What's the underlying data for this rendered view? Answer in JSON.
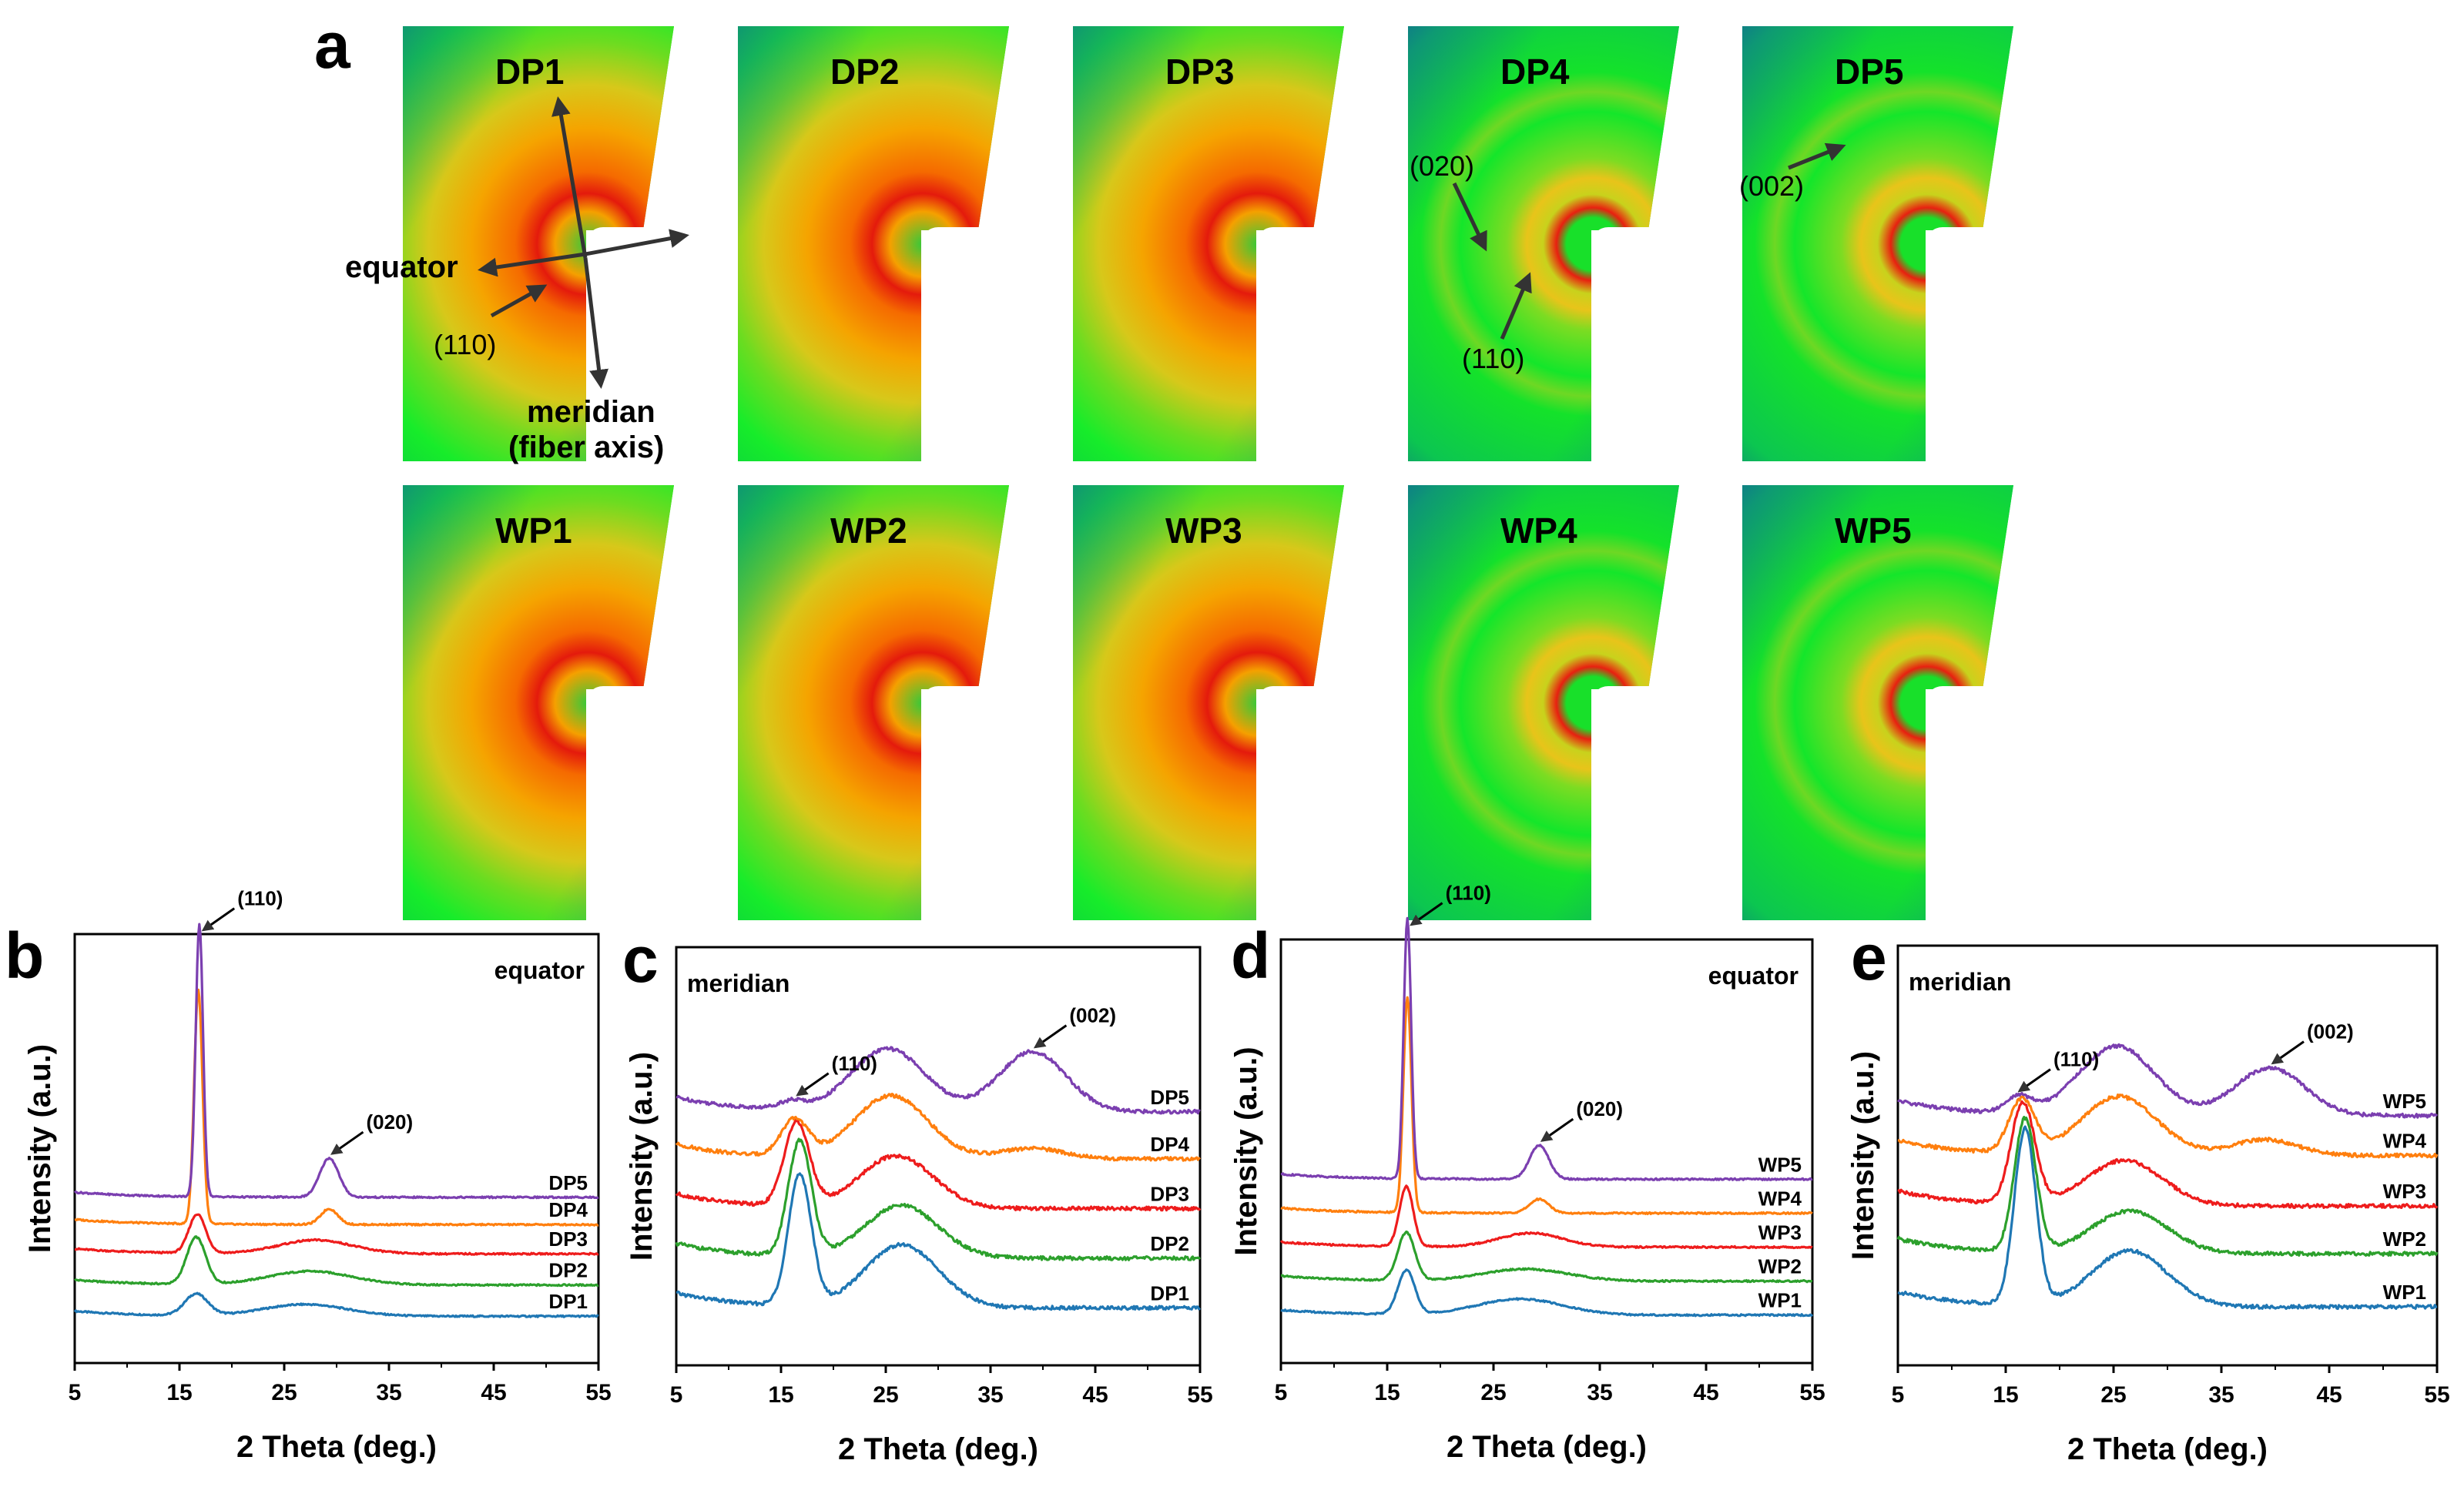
{
  "figure": {
    "panel_a_letter": "a",
    "dp_row_labels": [
      "DP1",
      "DP2",
      "DP3",
      "DP4",
      "DP5"
    ],
    "wp_row_labels": [
      "WP1",
      "WP2",
      "WP3",
      "WP4",
      "WP5"
    ],
    "annotations": {
      "equator": "equator",
      "meridian": "meridian",
      "fiber_axis": "(fiber axis)",
      "dp1_110": "(110)",
      "dp4_020": "(020)",
      "dp4_110": "(110)",
      "dp5_002": "(002)"
    },
    "colors": {
      "purple": "#7b3fb0",
      "orange": "#ff7f0e",
      "red": "#ee1c1c",
      "green": "#2ca02c",
      "blue": "#1f77b4"
    }
  },
  "chart_data": [
    {
      "panel": "b",
      "type": "line",
      "corner_label": "equator",
      "xlabel": "2 Theta (deg.)",
      "ylabel": "Intensity (a.u.)",
      "xlim": [
        5,
        55
      ],
      "xticks": [
        "5",
        "15",
        "25",
        "35",
        "45",
        "55"
      ],
      "peak_annotations": [
        {
          "text": "(110)",
          "x": 17
        },
        {
          "text": "(020)",
          "x": 29.3
        }
      ],
      "series": [
        {
          "name": "DP1",
          "color": "#1f77b4",
          "baseline": 0.0,
          "peaks": [
            [
              16.6,
              0.55,
              1.1
            ],
            [
              27,
              0.3,
              4.0
            ]
          ]
        },
        {
          "name": "DP2",
          "color": "#2ca02c",
          "baseline": 0.8,
          "peaks": [
            [
              16.6,
              1.2,
              0.9
            ],
            [
              27.5,
              0.35,
              4.0
            ]
          ]
        },
        {
          "name": "DP3",
          "color": "#ee1c1c",
          "baseline": 1.6,
          "peaks": [
            [
              16.7,
              1.0,
              0.8
            ],
            [
              28,
              0.35,
              3.5
            ]
          ]
        },
        {
          "name": "DP4",
          "color": "#ff7f0e",
          "baseline": 2.35,
          "peaks": [
            [
              16.8,
              6.0,
              0.4
            ],
            [
              29.3,
              0.4,
              0.8
            ]
          ]
        },
        {
          "name": "DP5",
          "color": "#7b3fb0",
          "baseline": 3.05,
          "peaks": [
            [
              16.9,
              7.0,
              0.35
            ],
            [
              29.3,
              1.0,
              0.9
            ]
          ]
        }
      ]
    },
    {
      "panel": "c",
      "type": "line",
      "corner_label": "meridian",
      "xlabel": "2 Theta (deg.)",
      "ylabel": "Intensity (a.u.)",
      "xlim": [
        5,
        55
      ],
      "xticks": [
        "5",
        "15",
        "25",
        "35",
        "45",
        "55"
      ],
      "peak_annotations": [
        {
          "text": "(110)",
          "x": 16.3
        },
        {
          "text": "(002)",
          "x": 39
        }
      ],
      "series": [
        {
          "name": "DP1",
          "color": "#1f77b4",
          "baseline": 0.0,
          "peaks": [
            [
              16.8,
              2.5,
              1.1
            ],
            [
              26.5,
              1.2,
              3.5
            ]
          ]
        },
        {
          "name": "DP2",
          "color": "#2ca02c",
          "baseline": 0.95,
          "peaks": [
            [
              16.8,
              2.2,
              1.1
            ],
            [
              26.5,
              1.0,
              3.5
            ]
          ]
        },
        {
          "name": "DP3",
          "color": "#ee1c1c",
          "baseline": 1.9,
          "peaks": [
            [
              16.5,
              1.6,
              1.2
            ],
            [
              26,
              1.0,
              3.5
            ]
          ]
        },
        {
          "name": "DP4",
          "color": "#ff7f0e",
          "baseline": 2.85,
          "peaks": [
            [
              16.3,
              0.7,
              1.3
            ],
            [
              25.5,
              1.2,
              3.5
            ],
            [
              39,
              0.2,
              3.0
            ]
          ]
        },
        {
          "name": "DP5",
          "color": "#7b3fb0",
          "baseline": 3.75,
          "peaks": [
            [
              16,
              0.15,
              1.3
            ],
            [
              25.2,
              1.2,
              3.5
            ],
            [
              39,
              1.15,
              3.2
            ]
          ]
        }
      ]
    },
    {
      "panel": "d",
      "type": "line",
      "corner_label": "equator",
      "xlabel": "2 Theta (deg.)",
      "ylabel": "Intensity (a.u.)",
      "xlim": [
        5,
        55
      ],
      "xticks": [
        "5",
        "15",
        "25",
        "35",
        "45",
        "55"
      ],
      "peak_annotations": [
        {
          "text": "(110)",
          "x": 17
        },
        {
          "text": "(020)",
          "x": 29.3
        }
      ],
      "series": [
        {
          "name": "WP1",
          "color": "#1f77b4",
          "baseline": 0.0,
          "peaks": [
            [
              16.8,
              1.1,
              0.8
            ],
            [
              27.5,
              0.4,
              4.0
            ]
          ]
        },
        {
          "name": "WP2",
          "color": "#2ca02c",
          "baseline": 0.85,
          "peaks": [
            [
              16.8,
              1.2,
              0.8
            ],
            [
              28,
              0.3,
              4.0
            ]
          ]
        },
        {
          "name": "WP3",
          "color": "#ee1c1c",
          "baseline": 1.7,
          "peaks": [
            [
              16.8,
              1.5,
              0.65
            ],
            [
              28.5,
              0.35,
              3.0
            ]
          ]
        },
        {
          "name": "WP4",
          "color": "#ff7f0e",
          "baseline": 2.55,
          "peaks": [
            [
              16.9,
              5.4,
              0.38
            ],
            [
              29.3,
              0.35,
              0.9
            ]
          ]
        },
        {
          "name": "WP5",
          "color": "#7b3fb0",
          "baseline": 3.4,
          "peaks": [
            [
              16.9,
              6.5,
              0.35
            ],
            [
              29.3,
              0.85,
              0.9
            ]
          ]
        }
      ]
    },
    {
      "panel": "e",
      "type": "line",
      "corner_label": "meridian",
      "xlabel": "2 Theta (deg.)",
      "ylabel": "Intensity (a.u.)",
      "xlim": [
        5,
        55
      ],
      "xticks": [
        "5",
        "15",
        "25",
        "35",
        "45",
        "55"
      ],
      "peak_annotations": [
        {
          "text": "(110)",
          "x": 16
        },
        {
          "text": "(002)",
          "x": 39.5
        }
      ],
      "series": [
        {
          "name": "WP1",
          "color": "#1f77b4",
          "baseline": 0.0,
          "peaks": [
            [
              16.8,
              3.3,
              1.0
            ],
            [
              26.5,
              1.05,
              3.5
            ]
          ]
        },
        {
          "name": "WP2",
          "color": "#2ca02c",
          "baseline": 1.0,
          "peaks": [
            [
              16.8,
              2.5,
              1.0
            ],
            [
              26.5,
              0.8,
              3.5
            ]
          ]
        },
        {
          "name": "WP3",
          "color": "#ee1c1c",
          "baseline": 1.9,
          "peaks": [
            [
              16.6,
              1.9,
              1.1
            ],
            [
              26,
              0.85,
              3.5
            ]
          ]
        },
        {
          "name": "WP4",
          "color": "#ff7f0e",
          "baseline": 2.85,
          "peaks": [
            [
              16.5,
              1.0,
              1.2
            ],
            [
              25.5,
              1.1,
              3.5
            ],
            [
              39,
              0.3,
              3.0
            ]
          ]
        },
        {
          "name": "WP5",
          "color": "#7b3fb0",
          "baseline": 3.6,
          "peaks": [
            [
              16.2,
              0.3,
              1.2
            ],
            [
              25.3,
              1.3,
              3.5
            ],
            [
              39.5,
              0.9,
              3.2
            ]
          ]
        }
      ]
    }
  ]
}
